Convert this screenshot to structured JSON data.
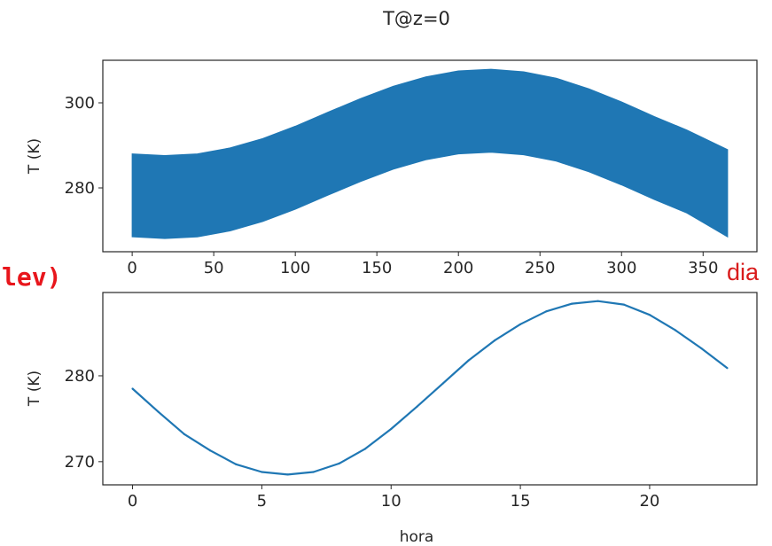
{
  "figure_title": "T@z=0",
  "overlay_text": {
    "left": "lev)",
    "right": "dia"
  },
  "colors": {
    "series": "#1f77b4",
    "overlay": "#e8161c"
  },
  "chart_data": [
    {
      "type": "area",
      "title": "T@z=0",
      "xlabel": "",
      "ylabel": "T (K)",
      "xlim": [
        -18,
        383
      ],
      "ylim": [
        265,
        310
      ],
      "xticks": [
        0,
        50,
        100,
        150,
        200,
        250,
        300,
        350
      ],
      "yticks": [
        280,
        300
      ],
      "grid": false,
      "series": [
        {
          "x": [
            0,
            20,
            40,
            60,
            80,
            100,
            120,
            140,
            160,
            180,
            200,
            220,
            240,
            260,
            280,
            300,
            320,
            340,
            365
          ],
          "upper": [
            288.0,
            287.6,
            288.0,
            289.4,
            291.6,
            294.5,
            297.8,
            301.0,
            303.9,
            306.1,
            307.5,
            307.9,
            307.3,
            305.8,
            303.3,
            300.2,
            296.8,
            293.6,
            289.0
          ],
          "lower": [
            268.5,
            268.1,
            268.5,
            269.9,
            272.1,
            275.0,
            278.3,
            281.5,
            284.4,
            286.6,
            288.0,
            288.4,
            287.8,
            286.3,
            283.8,
            280.7,
            277.3,
            274.1,
            268.5
          ]
        }
      ]
    },
    {
      "type": "line",
      "xlabel": "hora",
      "ylabel": "T (K)",
      "xlim": [
        -1.15,
        24.15
      ],
      "ylim": [
        267.3,
        289.7
      ],
      "xticks": [
        0,
        5,
        10,
        15,
        20
      ],
      "yticks": [
        270,
        280
      ],
      "grid": false,
      "series": [
        {
          "x": [
            0,
            1,
            2,
            3,
            4,
            5,
            6,
            7,
            8,
            9,
            10,
            11,
            12,
            13,
            14,
            15,
            16,
            17,
            18,
            19,
            20,
            21,
            22,
            23
          ],
          "values": [
            278.5,
            275.8,
            273.2,
            271.3,
            269.7,
            268.8,
            268.5,
            268.8,
            269.8,
            271.5,
            273.8,
            276.4,
            279.1,
            281.8,
            284.1,
            286.0,
            287.5,
            288.4,
            288.7,
            288.3,
            287.1,
            285.3,
            283.2,
            280.9
          ]
        }
      ]
    }
  ]
}
